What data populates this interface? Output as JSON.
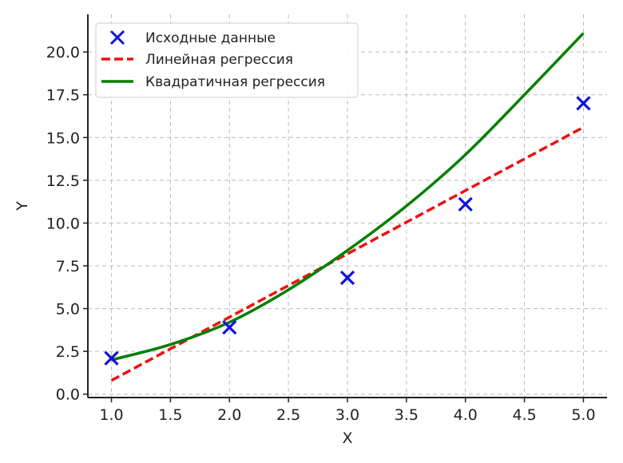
{
  "chart_data": {
    "type": "scatter",
    "xlabel": "X",
    "ylabel": "Y",
    "xlim": [
      0.8,
      5.2
    ],
    "ylim": [
      -0.2,
      22.2
    ],
    "xticks": [
      1.0,
      1.5,
      2.0,
      2.5,
      3.0,
      3.5,
      4.0,
      4.5,
      5.0
    ],
    "yticks": [
      0.0,
      2.5,
      5.0,
      7.5,
      10.0,
      12.5,
      15.0,
      17.5,
      20.0
    ],
    "x_tick_labels": [
      "1.0",
      "1.5",
      "2.0",
      "2.5",
      "3.0",
      "3.5",
      "4.0",
      "4.5",
      "5.0"
    ],
    "y_tick_labels": [
      "0.0",
      "2.5",
      "5.0",
      "7.5",
      "10.0",
      "12.5",
      "15.0",
      "17.5",
      "20.0"
    ],
    "grid": true,
    "legend_position": "top-left",
    "series": [
      {
        "name": "Исходные данные",
        "kind": "scatter",
        "marker": "x",
        "color": "#1010e0",
        "x": [
          1.0,
          2.0,
          3.0,
          4.0,
          5.0
        ],
        "y": [
          2.1,
          3.9,
          6.8,
          11.1,
          17.0
        ]
      },
      {
        "name": "Линейная регрессия",
        "kind": "line",
        "style": "dashed",
        "color": "#ee1111",
        "x": [
          1.0,
          5.0
        ],
        "y": [
          0.8,
          15.6
        ]
      },
      {
        "name": "Квадратичная регрессия",
        "kind": "line",
        "style": "solid",
        "color": "#008000",
        "x": [
          1.0,
          1.5,
          2.0,
          2.5,
          3.0,
          3.5,
          4.0,
          4.5,
          5.0
        ],
        "y": [
          2.0,
          2.9,
          4.2,
          6.1,
          8.4,
          11.0,
          14.0,
          17.5,
          21.1
        ]
      }
    ]
  }
}
